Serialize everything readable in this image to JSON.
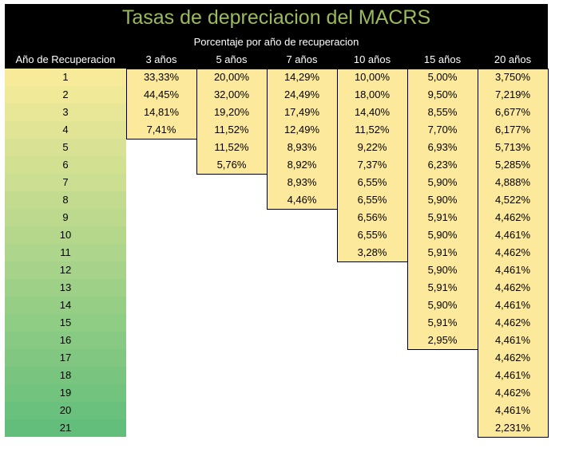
{
  "title": "Tasas de depreciacion del MACRS",
  "subtitle": "Porcentaje por año de recuperacion",
  "table": {
    "row_header": "Año de Recuperacion",
    "rows": [
      "1",
      "2",
      "3",
      "4",
      "5",
      "6",
      "7",
      "8",
      "9",
      "10",
      "11",
      "12",
      "13",
      "14",
      "15",
      "16",
      "17",
      "18",
      "19",
      "20",
      "21"
    ],
    "columns": [
      {
        "header": "3 años",
        "values": [
          "33,33%",
          "44,45%",
          "14,81%",
          "7,41%"
        ]
      },
      {
        "header": "5 años",
        "values": [
          "20,00%",
          "32,00%",
          "19,20%",
          "11,52%",
          "11,52%",
          "5,76%"
        ]
      },
      {
        "header": "7 años",
        "values": [
          "14,29%",
          "24,49%",
          "17,49%",
          "12,49%",
          "8,93%",
          "8,92%",
          "8,93%",
          "4,46%"
        ]
      },
      {
        "header": "10 años",
        "values": [
          "10,00%",
          "18,00%",
          "14,40%",
          "11,52%",
          "9,22%",
          "7,37%",
          "6,55%",
          "6,55%",
          "6,56%",
          "6,55%",
          "3,28%"
        ]
      },
      {
        "header": "15 años",
        "values": [
          "5,00%",
          "9,50%",
          "8,55%",
          "7,70%",
          "6,93%",
          "6,23%",
          "5,90%",
          "5,90%",
          "5,91%",
          "5,90%",
          "5,91%",
          "5,90%",
          "5,91%",
          "5,90%",
          "5,91%",
          "2,95%"
        ]
      },
      {
        "header": "20 años",
        "values": [
          "3,750%",
          "7,219%",
          "6,677%",
          "6,177%",
          "5,713%",
          "5,285%",
          "4,888%",
          "4,522%",
          "4,462%",
          "4,461%",
          "4,462%",
          "4,461%",
          "4,462%",
          "4,461%",
          "4,462%",
          "4,461%",
          "4,462%",
          "4,461%",
          "4,462%",
          "4,461%",
          "2,231%"
        ]
      }
    ]
  }
}
